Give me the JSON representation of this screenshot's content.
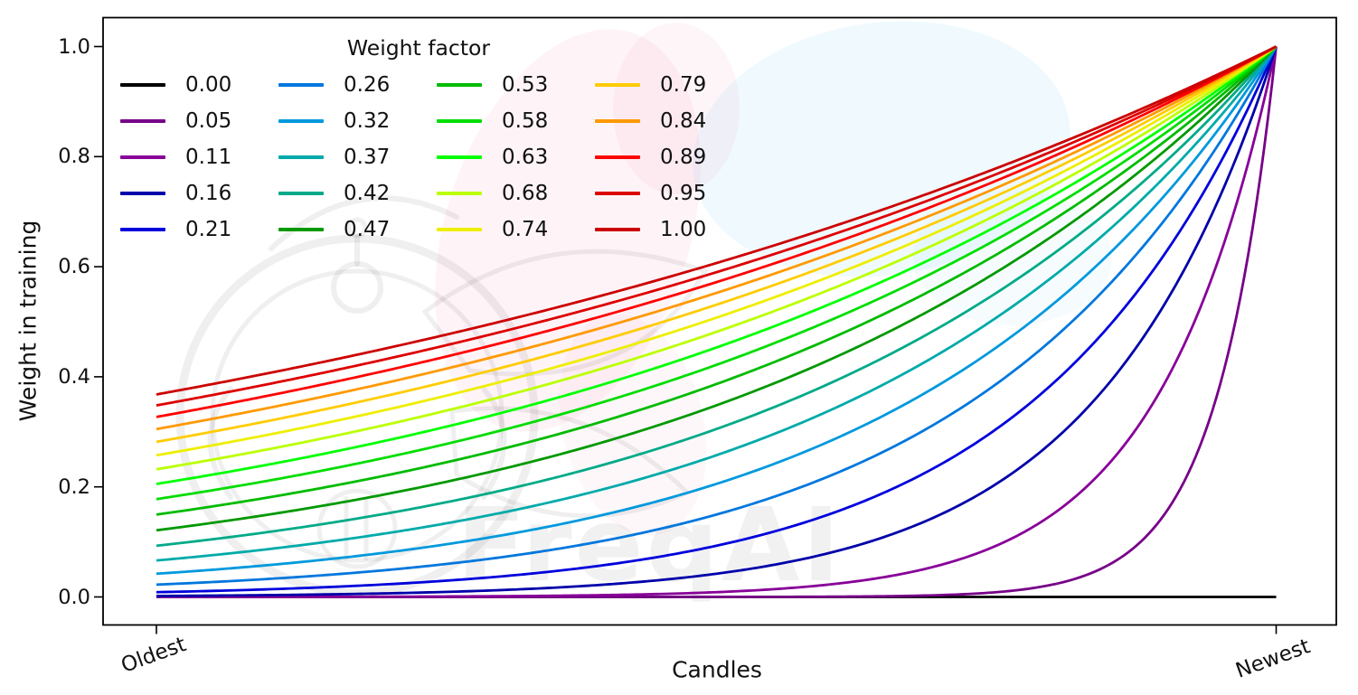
{
  "figure": {
    "background": "#ffffff",
    "watermark": {
      "text": "FreqAI",
      "logo_name": "freqai-robot-logo",
      "logo_color": "#ebebeb",
      "pink_blob_color": "#e91e63",
      "blue_blob_color": "#55c0f0"
    }
  },
  "chart_data": {
    "type": "line",
    "title": "",
    "xlabel": "Candles",
    "ylabel": "Weight in training",
    "x_axis": {
      "min_label": "Oldest",
      "max_label": "Newest",
      "tick_rotation_deg": 20,
      "range": [
        0,
        1
      ]
    },
    "y_axis": {
      "ticks": [
        0.0,
        0.2,
        0.4,
        0.6,
        0.8,
        1.0
      ],
      "tick_labels": [
        "0.0",
        "0.2",
        "0.4",
        "0.6",
        "0.8",
        "1.0"
      ],
      "lim": [
        -0.052,
        1.054
      ]
    },
    "legend": {
      "title": "Weight factor",
      "position": "upper left",
      "columns": 4,
      "rows": 5,
      "frame": false
    },
    "grid": false,
    "curve_formula": "weight(t) = exp(-(1 - t) / weight_factor); t = 0 at Oldest, t = 1 at Newest; weight_factor = 0 gives weight 0 everywhere",
    "series": [
      {
        "label": "0.00",
        "weight_factor": 0.0,
        "color": "#000000",
        "y_at_oldest": 0.0,
        "y_at_newest": 0.0
      },
      {
        "label": "0.05",
        "weight_factor": 0.0526,
        "color": "#770088",
        "y_at_oldest": 0.0,
        "y_at_newest": 1.0
      },
      {
        "label": "0.11",
        "weight_factor": 0.1053,
        "color": "#880099",
        "y_at_oldest": 0.0,
        "y_at_newest": 1.0
      },
      {
        "label": "0.16",
        "weight_factor": 0.1579,
        "color": "#0000aa",
        "y_at_oldest": 0.002,
        "y_at_newest": 1.0
      },
      {
        "label": "0.21",
        "weight_factor": 0.2105,
        "color": "#0000dd",
        "y_at_oldest": 0.009,
        "y_at_newest": 1.0
      },
      {
        "label": "0.26",
        "weight_factor": 0.2632,
        "color": "#0077dd",
        "y_at_oldest": 0.022,
        "y_at_newest": 1.0
      },
      {
        "label": "0.32",
        "weight_factor": 0.3158,
        "color": "#0099dd",
        "y_at_oldest": 0.042,
        "y_at_newest": 1.0
      },
      {
        "label": "0.37",
        "weight_factor": 0.3684,
        "color": "#00aaaa",
        "y_at_oldest": 0.066,
        "y_at_newest": 1.0
      },
      {
        "label": "0.42",
        "weight_factor": 0.4211,
        "color": "#00aa88",
        "y_at_oldest": 0.093,
        "y_at_newest": 1.0
      },
      {
        "label": "0.47",
        "weight_factor": 0.4737,
        "color": "#009900",
        "y_at_oldest": 0.121,
        "y_at_newest": 1.0
      },
      {
        "label": "0.53",
        "weight_factor": 0.5263,
        "color": "#00bb00",
        "y_at_oldest": 0.15,
        "y_at_newest": 1.0
      },
      {
        "label": "0.58",
        "weight_factor": 0.5789,
        "color": "#00dd00",
        "y_at_oldest": 0.178,
        "y_at_newest": 1.0
      },
      {
        "label": "0.63",
        "weight_factor": 0.6316,
        "color": "#00ff00",
        "y_at_oldest": 0.205,
        "y_at_newest": 1.0
      },
      {
        "label": "0.68",
        "weight_factor": 0.6842,
        "color": "#bbff00",
        "y_at_oldest": 0.232,
        "y_at_newest": 1.0
      },
      {
        "label": "0.74",
        "weight_factor": 0.7368,
        "color": "#eeee00",
        "y_at_oldest": 0.257,
        "y_at_newest": 1.0
      },
      {
        "label": "0.79",
        "weight_factor": 0.7895,
        "color": "#ffcc00",
        "y_at_oldest": 0.282,
        "y_at_newest": 1.0
      },
      {
        "label": "0.84",
        "weight_factor": 0.8421,
        "color": "#ff9900",
        "y_at_oldest": 0.305,
        "y_at_newest": 1.0
      },
      {
        "label": "0.89",
        "weight_factor": 0.8947,
        "color": "#ff0000",
        "y_at_oldest": 0.327,
        "y_at_newest": 1.0
      },
      {
        "label": "0.95",
        "weight_factor": 0.9474,
        "color": "#dd0000",
        "y_at_oldest": 0.348,
        "y_at_newest": 1.0
      },
      {
        "label": "1.00",
        "weight_factor": 1.0,
        "color": "#cc0000",
        "y_at_oldest": 0.368,
        "y_at_newest": 1.0
      }
    ]
  }
}
